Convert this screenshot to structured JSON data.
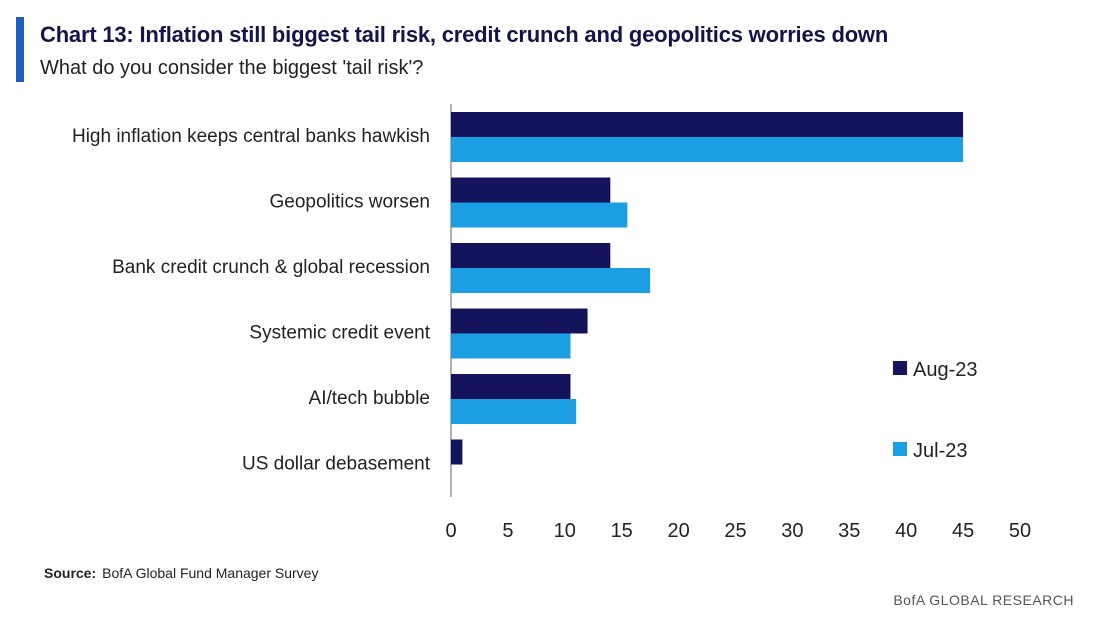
{
  "header": {
    "title": "Chart 13: Inflation still biggest tail risk, credit crunch and geopolitics worries down",
    "subtitle": "What do you consider the biggest 'tail risk'?"
  },
  "footer": {
    "source_label": "Source:",
    "source_text": "BofA Global Fund Manager Survey",
    "brand": "BofA GLOBAL RESEARCH"
  },
  "colors": {
    "accent": "#1f5fbf",
    "aug": "#14145c",
    "jul": "#1c9ee2",
    "axis": "#999999"
  },
  "chart_data": {
    "type": "bar",
    "orientation": "horizontal",
    "title": "Chart 13: Inflation still biggest tail risk, credit crunch and geopolitics worries down",
    "subtitle": "What do you consider the biggest 'tail risk'?",
    "xlabel": "",
    "ylabel": "",
    "categories": [
      "High inflation keeps central banks hawkish",
      "Geopolitics worsen",
      "Bank credit crunch & global recession",
      "Systemic credit event",
      "AI/tech bubble",
      "US dollar debasement"
    ],
    "series": [
      {
        "name": "Aug-23",
        "values": [
          45,
          14,
          14,
          12,
          10.5,
          1
        ]
      },
      {
        "name": "Jul-23",
        "values": [
          45,
          15.5,
          17.5,
          10.5,
          11,
          0
        ]
      }
    ],
    "xlim": [
      0,
      50
    ],
    "ticks": [
      "0",
      "5",
      "10",
      "15",
      "20",
      "25",
      "30",
      "35",
      "40",
      "45",
      "50"
    ],
    "grid": false,
    "legend_position": "right"
  }
}
